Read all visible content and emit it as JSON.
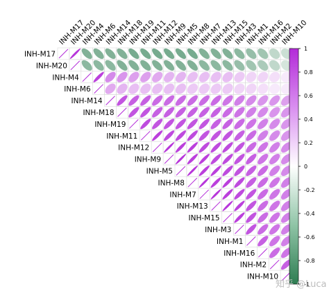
{
  "chart_data": {
    "type": "heatmap",
    "variant": "correlation-ellipse-upper-triangle",
    "title": "",
    "xlabel": "",
    "ylabel": "",
    "column_labels": [
      "INH-M17",
      "INH-M20",
      "INH-M4",
      "INH-M6",
      "INH-M14",
      "INH-M18",
      "INH-M19",
      "INH-M11",
      "INH-M12",
      "INH-M9",
      "INH-M5",
      "INH-M8",
      "INH-M7",
      "INH-M13",
      "INH-M15",
      "INH-M3",
      "INH-M1",
      "INH-M16",
      "INH-M2",
      "INH-M10"
    ],
    "row_labels": [
      "INH-M17",
      "INH-M20",
      "INH-M4",
      "INH-M6",
      "INH-M14",
      "INH-M18",
      "INH-M19",
      "INH-M11",
      "INH-M12",
      "INH-M9",
      "INH-M5",
      "INH-M8",
      "INH-M7",
      "INH-M13",
      "INH-M15",
      "INH-M3",
      "INH-M1",
      "INH-M16",
      "INH-M2",
      "INH-M10"
    ],
    "matrix": [
      [
        1,
        0.95,
        -0.6,
        -0.6,
        -0.6,
        -0.6,
        -0.65,
        -0.65,
        -0.65,
        -0.65,
        -0.65,
        -0.65,
        -0.6,
        -0.6,
        -0.6,
        -0.55,
        -0.5,
        -0.45,
        -0.3,
        -0.25
      ],
      [
        0.95,
        1,
        -0.55,
        -0.55,
        -0.55,
        -0.6,
        -0.6,
        -0.6,
        -0.6,
        -0.6,
        -0.6,
        -0.6,
        -0.55,
        -0.55,
        -0.55,
        -0.5,
        -0.45,
        -0.4,
        -0.3,
        -0.2
      ],
      [
        -0.6,
        -0.55,
        1,
        0.9,
        0.55,
        0.5,
        0.45,
        0.45,
        0.4,
        0.35,
        0.35,
        0.3,
        0.3,
        0.3,
        0.3,
        0.25,
        0.2,
        0.2,
        0.15,
        0.1
      ],
      [
        -0.6,
        -0.55,
        0.9,
        1,
        0.4,
        0.35,
        0.3,
        0.3,
        0.3,
        0.3,
        0.3,
        0.25,
        0.25,
        0.25,
        0.25,
        0.2,
        0.2,
        0.15,
        0.1,
        0.1
      ],
      [
        -0.6,
        -0.55,
        0.55,
        0.4,
        1,
        0.8,
        0.75,
        0.75,
        0.7,
        0.7,
        0.7,
        0.7,
        0.7,
        0.7,
        0.65,
        0.6,
        0.55,
        0.5,
        0.5,
        0.45
      ],
      [
        -0.6,
        -0.6,
        0.5,
        0.35,
        0.8,
        1,
        0.8,
        0.8,
        0.75,
        0.75,
        0.75,
        0.75,
        0.75,
        0.75,
        0.7,
        0.65,
        0.6,
        0.55,
        0.5,
        0.5
      ],
      [
        -0.65,
        -0.6,
        0.45,
        0.3,
        0.75,
        0.8,
        1,
        0.85,
        0.8,
        0.8,
        0.8,
        0.8,
        0.8,
        0.75,
        0.75,
        0.7,
        0.65,
        0.6,
        0.55,
        0.5
      ],
      [
        -0.65,
        -0.6,
        0.45,
        0.3,
        0.75,
        0.8,
        0.85,
        1,
        0.9,
        0.85,
        0.85,
        0.85,
        0.8,
        0.8,
        0.8,
        0.75,
        0.7,
        0.6,
        0.55,
        0.5
      ],
      [
        -0.65,
        -0.6,
        0.4,
        0.3,
        0.7,
        0.75,
        0.8,
        0.9,
        1,
        0.95,
        0.9,
        0.9,
        0.85,
        0.85,
        0.85,
        0.8,
        0.7,
        0.65,
        0.6,
        0.55
      ],
      [
        -0.65,
        -0.6,
        0.35,
        0.3,
        0.7,
        0.75,
        0.8,
        0.85,
        0.95,
        1,
        0.95,
        0.9,
        0.9,
        0.85,
        0.85,
        0.8,
        0.75,
        0.65,
        0.6,
        0.55
      ],
      [
        -0.65,
        -0.6,
        0.35,
        0.3,
        0.7,
        0.75,
        0.8,
        0.85,
        0.9,
        0.95,
        1,
        0.95,
        0.9,
        0.9,
        0.85,
        0.8,
        0.75,
        0.7,
        0.6,
        0.55
      ],
      [
        -0.65,
        -0.6,
        0.3,
        0.25,
        0.7,
        0.75,
        0.8,
        0.85,
        0.9,
        0.9,
        0.95,
        1,
        0.95,
        0.9,
        0.9,
        0.85,
        0.75,
        0.7,
        0.65,
        0.6
      ],
      [
        -0.6,
        -0.55,
        0.3,
        0.25,
        0.7,
        0.75,
        0.8,
        0.8,
        0.85,
        0.9,
        0.9,
        0.95,
        1,
        0.95,
        0.9,
        0.85,
        0.8,
        0.7,
        0.65,
        0.6
      ],
      [
        -0.6,
        -0.55,
        0.3,
        0.25,
        0.7,
        0.75,
        0.75,
        0.8,
        0.85,
        0.85,
        0.9,
        0.9,
        0.95,
        1,
        0.95,
        0.9,
        0.8,
        0.7,
        0.65,
        0.6
      ],
      [
        -0.6,
        -0.55,
        0.3,
        0.25,
        0.65,
        0.7,
        0.75,
        0.8,
        0.85,
        0.85,
        0.85,
        0.9,
        0.9,
        0.95,
        1,
        0.9,
        0.8,
        0.7,
        0.65,
        0.6
      ],
      [
        -0.55,
        -0.5,
        0.25,
        0.2,
        0.6,
        0.65,
        0.7,
        0.75,
        0.8,
        0.8,
        0.8,
        0.85,
        0.85,
        0.9,
        0.9,
        1,
        0.8,
        0.7,
        0.65,
        0.6
      ],
      [
        -0.5,
        -0.45,
        0.2,
        0.2,
        0.55,
        0.6,
        0.65,
        0.7,
        0.7,
        0.75,
        0.75,
        0.75,
        0.8,
        0.8,
        0.8,
        0.8,
        1,
        0.75,
        0.65,
        0.6
      ],
      [
        -0.45,
        -0.4,
        0.2,
        0.15,
        0.5,
        0.55,
        0.6,
        0.6,
        0.65,
        0.65,
        0.7,
        0.7,
        0.7,
        0.7,
        0.7,
        0.7,
        0.75,
        1,
        0.7,
        0.65
      ],
      [
        -0.3,
        -0.3,
        0.15,
        0.1,
        0.5,
        0.5,
        0.55,
        0.55,
        0.6,
        0.6,
        0.6,
        0.65,
        0.65,
        0.65,
        0.65,
        0.65,
        0.65,
        0.7,
        1,
        0.75
      ],
      [
        -0.25,
        -0.2,
        0.1,
        0.1,
        0.45,
        0.5,
        0.5,
        0.5,
        0.55,
        0.55,
        0.55,
        0.6,
        0.6,
        0.6,
        0.6,
        0.6,
        0.6,
        0.65,
        0.75,
        1
      ]
    ],
    "colorbar": {
      "range": [
        -1,
        1
      ],
      "ticks": [
        "1",
        "0.8",
        "0.6",
        "0.4",
        "0.2",
        "0",
        "-0.2",
        "-0.4",
        "-0.6",
        "-0.8",
        "-1"
      ],
      "colors": {
        "negative": "#2e7d52",
        "neutral": "#ffffff",
        "positive": "#b32bd8"
      }
    },
    "grid": true,
    "legend": "colorbar-right"
  },
  "watermark": "知乎 @Luca"
}
